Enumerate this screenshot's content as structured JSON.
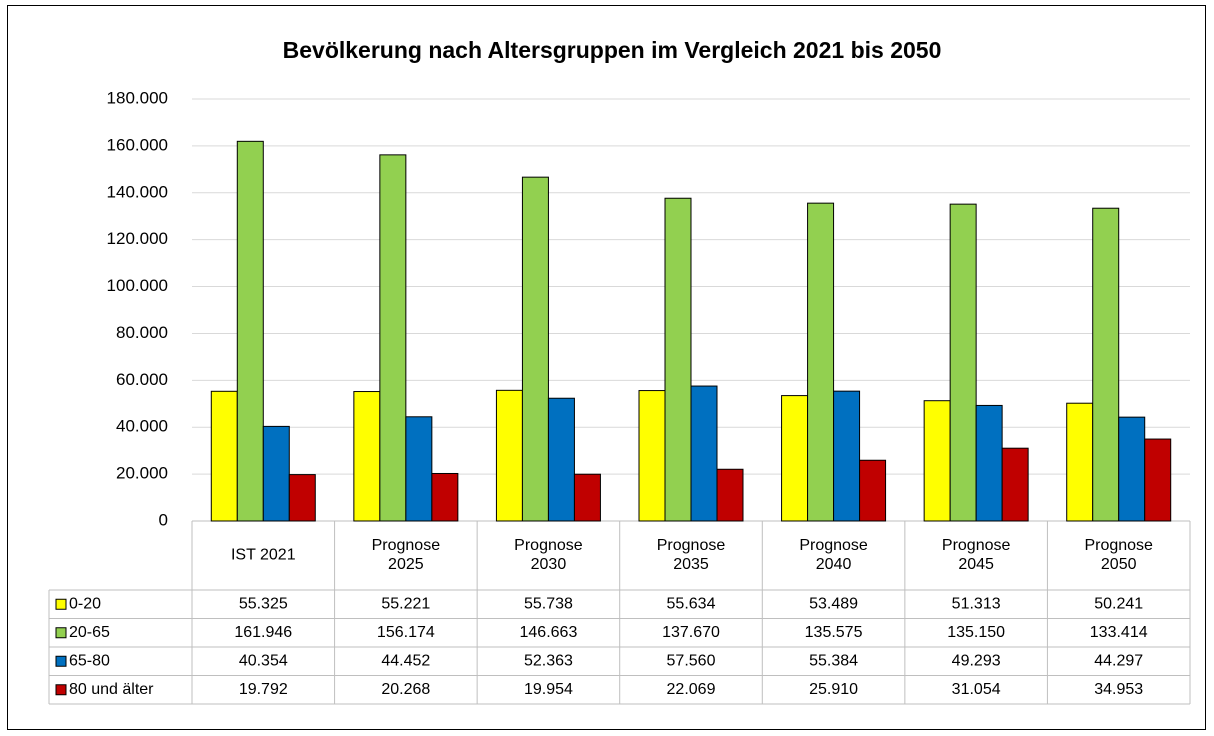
{
  "chart_data": {
    "type": "bar",
    "title": "Bevölkerung nach Altersgruppen im Vergleich 2021 bis 2050",
    "categories": [
      "IST 2021",
      "Prognose\n2025",
      "Prognose\n2030",
      "Prognose\n2035",
      "Prognose\n2040",
      "Prognose\n2045",
      "Prognose\n2050"
    ],
    "series": [
      {
        "name": "0-20",
        "color": "#ffff00",
        "values": [
          55325,
          55221,
          55738,
          55634,
          53489,
          51313,
          50241
        ],
        "value_labels": [
          "55.325",
          "55.221",
          "55.738",
          "55.634",
          "53.489",
          "51.313",
          "50.241"
        ]
      },
      {
        "name": "20-65",
        "color": "#92d050",
        "values": [
          161946,
          156174,
          146663,
          137670,
          135575,
          135150,
          133414
        ],
        "value_labels": [
          "161.946",
          "156.174",
          "146.663",
          "137.670",
          "135.575",
          "135.150",
          "133.414"
        ]
      },
      {
        "name": "65-80",
        "color": "#0070c0",
        "values": [
          40354,
          44452,
          52363,
          57560,
          55384,
          49293,
          44297
        ],
        "value_labels": [
          "40.354",
          "44.452",
          "52.363",
          "57.560",
          "55.384",
          "49.293",
          "44.297"
        ]
      },
      {
        "name": "80 und älter",
        "color": "#c00000",
        "values": [
          19792,
          20268,
          19954,
          22069,
          25910,
          31054,
          34953
        ],
        "value_labels": [
          "19.792",
          "20.268",
          "19.954",
          "22.069",
          "25.910",
          "31.054",
          "34.953"
        ]
      }
    ],
    "ylim": [
      0,
      180000
    ],
    "yticks": [
      0,
      {
        "value": 20000,
        "label": "20.000"
      },
      {
        "value": 40000,
        "label": "40.000"
      },
      {
        "value": 60000,
        "label": "60.000"
      },
      {
        "value": 80000,
        "label": "80.000"
      },
      {
        "value": 100000,
        "label": "100.000"
      },
      {
        "value": 120000,
        "label": "120.000"
      },
      {
        "value": 140000,
        "label": "140.000"
      },
      {
        "value": 160000,
        "label": "160.000"
      },
      {
        "value": 180000,
        "label": "180.000"
      }
    ],
    "grid": true
  }
}
